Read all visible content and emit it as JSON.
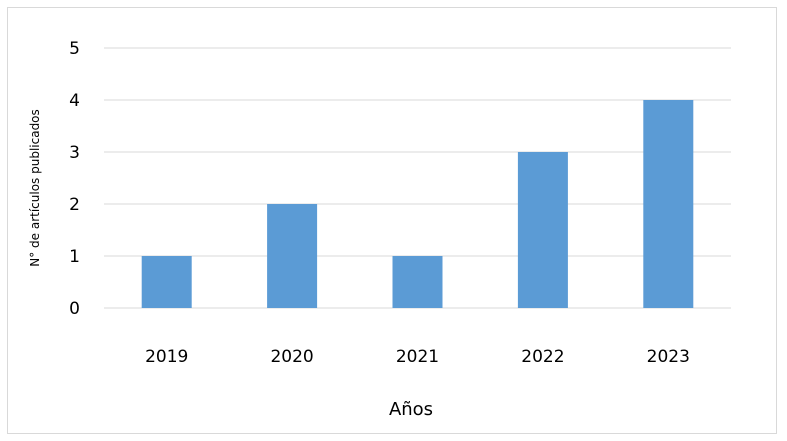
{
  "chart_data": {
    "type": "bar",
    "categories": [
      "2019",
      "2020",
      "2021",
      "2022",
      "2023"
    ],
    "values": [
      1,
      2,
      1,
      3,
      4
    ],
    "xlabel": "Años",
    "ylabel": "N° de artículos publicados",
    "ylim": [
      0,
      5
    ],
    "yticks": [
      0,
      1,
      2,
      3,
      4,
      5
    ],
    "grid": true,
    "legend": "none",
    "bar_color": "#5b9bd5",
    "grid_color": "#d9d9d9"
  }
}
